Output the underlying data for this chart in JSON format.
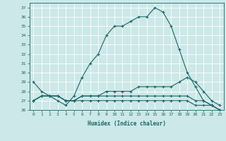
{
  "xlabel": "Humidex (Indice chaleur)",
  "x": [
    0,
    1,
    2,
    3,
    4,
    5,
    6,
    7,
    8,
    9,
    10,
    11,
    12,
    13,
    14,
    15,
    16,
    17,
    18,
    19,
    20,
    21,
    22,
    23
  ],
  "line1": [
    29,
    28,
    27.5,
    27,
    26.5,
    27.5,
    29.5,
    31,
    32,
    34,
    35,
    35,
    35.5,
    36,
    36,
    37,
    36.5,
    35,
    32.5,
    30,
    28.5,
    27,
    26.5,
    26
  ],
  "line2": [
    27,
    27.5,
    27.5,
    27.5,
    27,
    27,
    27.5,
    27.5,
    27.5,
    28,
    28,
    28,
    28,
    28.5,
    28.5,
    28.5,
    28.5,
    28.5,
    29,
    29.5,
    29,
    28,
    27,
    26.5
  ],
  "line3": [
    27,
    27.5,
    27.5,
    27.5,
    27,
    27,
    27,
    27,
    27,
    27,
    27,
    27,
    27,
    27,
    27,
    27,
    27,
    27,
    27,
    27,
    26.5,
    26.5,
    26.5,
    26
  ],
  "line4": [
    27,
    27.5,
    27.5,
    27.5,
    27,
    27,
    27.5,
    27.5,
    27.5,
    27.5,
    27.5,
    27.5,
    27.5,
    27.5,
    27.5,
    27.5,
    27.5,
    27.5,
    27.5,
    27.5,
    27,
    27,
    26.5,
    26
  ],
  "ylim": [
    26,
    37.5
  ],
  "yticks": [
    26,
    27,
    28,
    29,
    30,
    31,
    32,
    33,
    34,
    35,
    36,
    37
  ],
  "xticks": [
    0,
    1,
    2,
    3,
    4,
    5,
    6,
    7,
    8,
    9,
    10,
    11,
    12,
    13,
    14,
    15,
    16,
    17,
    18,
    19,
    20,
    21,
    22,
    23
  ],
  "bg_color": "#cce8e8",
  "grid_color": "#ffffff",
  "line_color": "#1a6666",
  "marker": "+",
  "figsize": [
    3.2,
    2.0
  ],
  "dpi": 100
}
